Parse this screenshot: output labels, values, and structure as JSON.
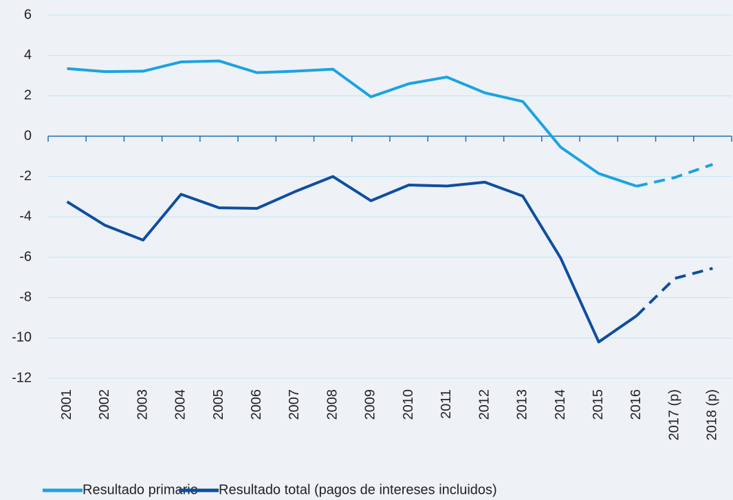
{
  "chart_data": {
    "type": "line",
    "categories": [
      "2001",
      "2002",
      "2003",
      "2004",
      "2005",
      "2006",
      "2007",
      "2008",
      "2009",
      "2010",
      "2011",
      "2012",
      "2013",
      "2014",
      "2015",
      "2016",
      "2017 (p)",
      "2018 (p)"
    ],
    "series": [
      {
        "name": "Resultado primario",
        "color": "#1aa3e3",
        "values": [
          3.35,
          3.2,
          3.22,
          3.68,
          3.73,
          3.15,
          3.22,
          3.32,
          1.95,
          2.6,
          2.93,
          2.15,
          1.72,
          -0.55,
          -1.85,
          -2.48,
          -2.05,
          -1.4
        ]
      },
      {
        "name": "Resultado total (pagos de intereses incluidos)",
        "color": "#0d4ea0",
        "values": [
          -3.25,
          -4.42,
          -5.15,
          -2.88,
          -3.55,
          -3.58,
          -2.75,
          -2.0,
          -3.2,
          -2.42,
          -2.47,
          -2.28,
          -2.97,
          -6.05,
          -10.2,
          -8.9,
          -7.05,
          -6.55
        ]
      }
    ],
    "dashed_from": 15,
    "ylim": [
      -12,
      6
    ],
    "yticks": [
      -12,
      -10,
      -8,
      -6,
      -4,
      -2,
      0,
      2,
      4,
      6
    ],
    "grid": true
  }
}
